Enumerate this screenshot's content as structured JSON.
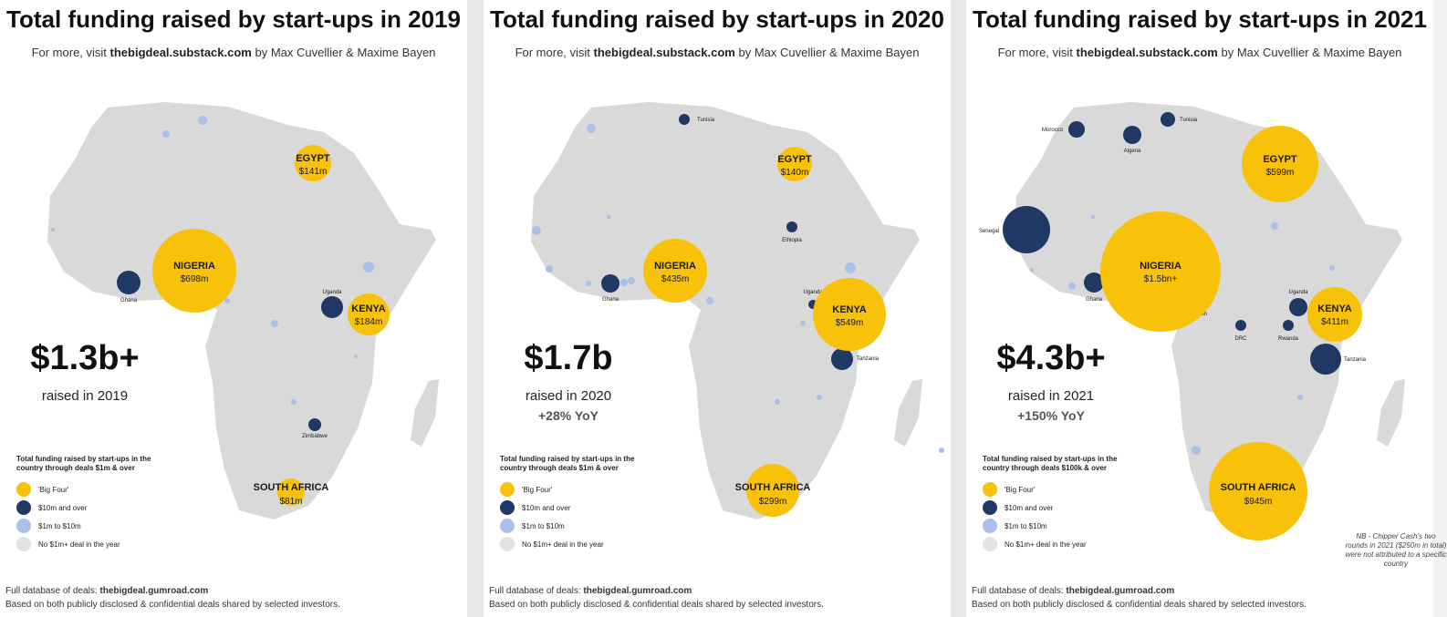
{
  "colors": {
    "big_four": "#f9c20a",
    "ten_m_over": "#1f3864",
    "one_to_ten": "#a9c0e8",
    "no_deal": "#d9d9d9",
    "land": "#d9d9d9"
  },
  "panels": [
    {
      "title": "Total funding raised by start-ups in 2019",
      "subtitle_prefix": "For more, visit ",
      "subtitle_link": "thebigdeal.substack.com",
      "subtitle_suffix": " by Max Cuvellier & Maxime Bayen",
      "total": "$1.3b+",
      "raised": "raised in 2019",
      "yoy": "",
      "legend": {
        "title": "Total funding raised by start-ups in the country through deals $1m & over",
        "items": [
          "'Big Four'",
          "$10m and over",
          "$1m to $10m",
          "No $1m+ deal in the year"
        ]
      },
      "footer_prefix": "Full database of deals: ",
      "footer_link": "thebigdeal.gumroad.com",
      "footer_note": "Based on both publicly disclosed & confidential deals shared by selected investors.",
      "nb": "",
      "big_four": [
        {
          "name": "EGYPT",
          "value": "$141m",
          "amount_m": 141
        },
        {
          "name": "NIGERIA",
          "value": "$698m",
          "amount_m": 698
        },
        {
          "name": "KENYA",
          "value": "$184m",
          "amount_m": 184
        },
        {
          "name": "SOUTH AFRICA",
          "value": "$81m",
          "amount_m": 81
        }
      ],
      "ten_m_labels": [
        "Ghana",
        "Uganda",
        "Zimbabwe"
      ]
    },
    {
      "title": "Total funding raised by start-ups in 2020",
      "subtitle_prefix": "For more, visit ",
      "subtitle_link": "thebigdeal.substack.com",
      "subtitle_suffix": " by Max Cuvellier & Maxime Bayen",
      "total": "$1.7b",
      "raised": "raised in 2020",
      "yoy": "+28% YoY",
      "legend": {
        "title": "Total funding raised by start-ups in the country through deals $1m & over",
        "items": [
          "'Big Four'",
          "$10m and over",
          "$1m to $10m",
          "No $1m+ deal in the year"
        ]
      },
      "footer_prefix": "Full database of deals: ",
      "footer_link": "thebigdeal.gumroad.com",
      "footer_note": "Based on both publicly disclosed & confidential deals shared by selected investors.",
      "nb": "",
      "big_four": [
        {
          "name": "EGYPT",
          "value": "$140m",
          "amount_m": 140
        },
        {
          "name": "NIGERIA",
          "value": "$435m",
          "amount_m": 435
        },
        {
          "name": "KENYA",
          "value": "$549m",
          "amount_m": 549
        },
        {
          "name": "SOUTH AFRICA",
          "value": "$299m",
          "amount_m": 299
        }
      ],
      "ten_m_labels": [
        "Tunisia",
        "Ethiopia",
        "Ghana",
        "Uganda",
        "Tanzania"
      ]
    },
    {
      "title": "Total funding raised by start-ups in 2021",
      "subtitle_prefix": "For more, visit ",
      "subtitle_link": "thebigdeal.substack.com",
      "subtitle_suffix": " by Max Cuvellier & Maxime Bayen",
      "total": "$4.3b+",
      "raised": "raised in 2021",
      "yoy": "+150% YoY",
      "legend": {
        "title": "Total funding raised by start-ups in the country through deals $100k & over",
        "items": [
          "'Big Four'",
          "$10m and over",
          "$1m to $10m",
          "No $1m+ deal in the year"
        ]
      },
      "footer_prefix": "Full database of deals: ",
      "footer_link": "thebigdeal.gumroad.com",
      "footer_note": "Based on both publicly disclosed & confidential deals shared by selected investors.",
      "nb": "NB - Chipper Cash's two rounds in 2021 ($250m in total) were not attributed to a specific country",
      "big_four": [
        {
          "name": "EGYPT",
          "value": "$599m",
          "amount_m": 599
        },
        {
          "name": "NIGERIA",
          "value": "$1.5bn+",
          "amount_m": 1500
        },
        {
          "name": "KENYA",
          "value": "$411m",
          "amount_m": 411
        },
        {
          "name": "SOUTH AFRICA",
          "value": "$945m",
          "amount_m": 945
        }
      ],
      "ten_m_labels": [
        "Morocco",
        "Algeria",
        "Tunisia",
        "Senegal",
        "Ghana",
        "Cameroon",
        "DRC",
        "Rwanda",
        "Uganda",
        "Tanzania"
      ]
    }
  ]
}
